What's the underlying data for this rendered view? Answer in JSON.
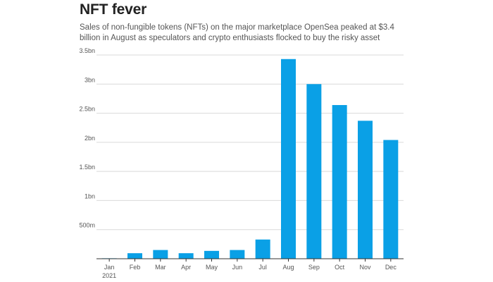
{
  "header": {
    "title": "NFT fever",
    "subtitle": "Sales of non-fungible tokens (NFTs) on the major marketplace OpenSea peaked at $3.4 billion in August as speculators and crypto enthusiasts flocked to buy the risky asset"
  },
  "chart_data": {
    "type": "bar",
    "categories": [
      "Jan",
      "Feb",
      "Mar",
      "Apr",
      "May",
      "Jun",
      "Jul",
      "Aug",
      "Sep",
      "Oct",
      "Nov",
      "Dec"
    ],
    "category_sublabels": [
      "2021",
      "",
      "",
      "",
      "",
      "",
      "",
      "",
      "",
      "",
      "",
      ""
    ],
    "values": [
      8000000,
      95000000,
      150000000,
      95000000,
      135000000,
      150000000,
      330000000,
      3430000000,
      3000000000,
      2640000000,
      2370000000,
      2040000000
    ],
    "ylim": [
      0,
      3500000000
    ],
    "yticks": [
      {
        "value": 500000000,
        "label": "500m"
      },
      {
        "value": 1000000000,
        "label": "1bn"
      },
      {
        "value": 1500000000,
        "label": "1.5bn"
      },
      {
        "value": 2000000000,
        "label": "2bn"
      },
      {
        "value": 2500000000,
        "label": "2.5bn"
      },
      {
        "value": 3000000000,
        "label": "3bn"
      },
      {
        "value": 3500000000,
        "label": "3.5bn"
      }
    ],
    "grid": true,
    "bar_color": "#0aa0e6",
    "grid_color": "#d9d9d9",
    "axis_color": "#333333"
  }
}
